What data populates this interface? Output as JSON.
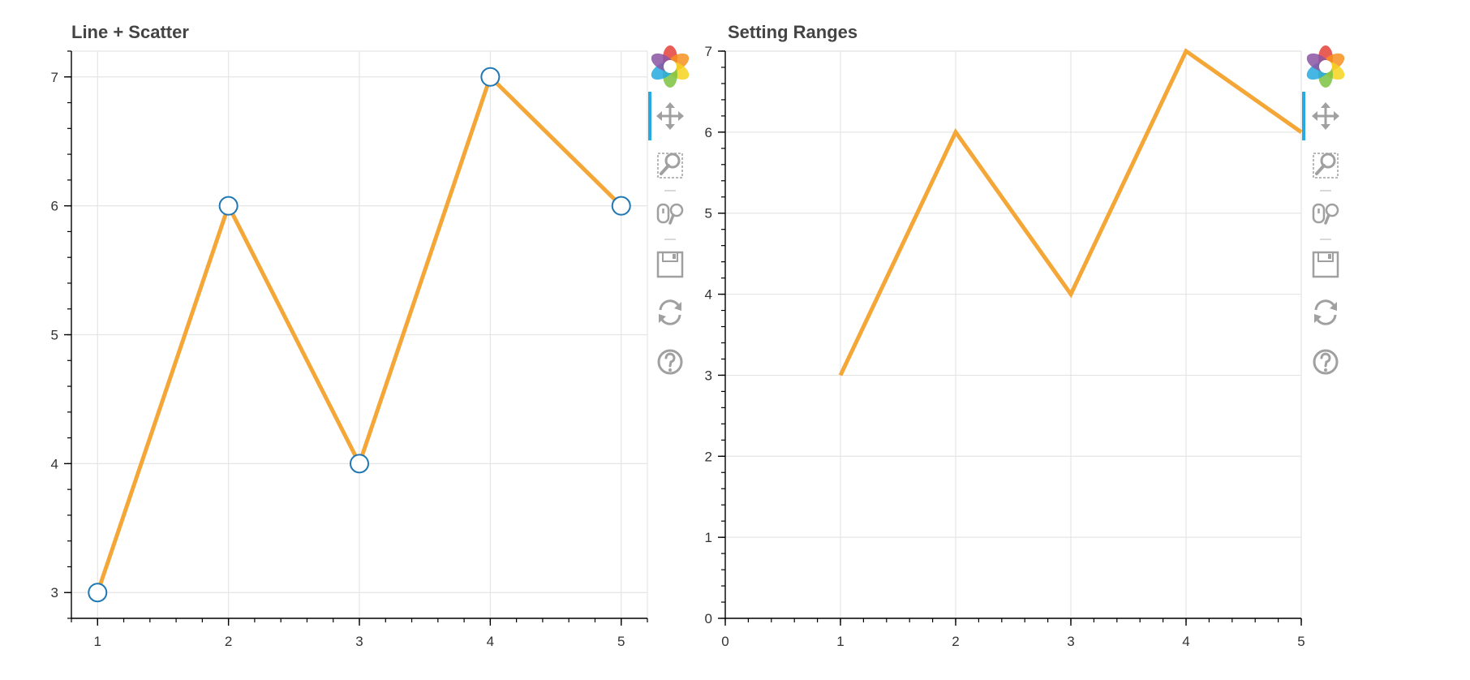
{
  "colors": {
    "line": "#f4a637",
    "marker_stroke": "#1f77b4",
    "grid": "#e5e5e5",
    "axis": "#000000",
    "tool_icon": "#a0a0a0",
    "active_tool": "#26aae1"
  },
  "toolbar": {
    "tools": [
      "bokeh-logo-icon",
      "pan-icon",
      "box-zoom-icon",
      "wheel-zoom-icon",
      "save-icon",
      "reset-icon",
      "help-icon"
    ]
  },
  "chart_data": [
    {
      "type": "line",
      "title": "Line + Scatter",
      "x": [
        1,
        2,
        3,
        4,
        5
      ],
      "series": [
        {
          "values": [
            3,
            6,
            4,
            7,
            6
          ],
          "style": "line",
          "color": "#f4a637"
        },
        {
          "values": [
            3,
            6,
            4,
            7,
            6
          ],
          "style": "scatter",
          "marker": "circle",
          "fill": "#ffffff",
          "color": "#1f77b4"
        }
      ],
      "xlim": [
        0.8,
        5.2
      ],
      "ylim": [
        2.8,
        7.2
      ],
      "xticks": [
        1,
        2,
        3,
        4,
        5
      ],
      "yticks": [
        3,
        4,
        5,
        6,
        7
      ],
      "xtick_labels": [
        "1",
        "2",
        "3",
        "4",
        "5"
      ],
      "ytick_labels": [
        "3",
        "4",
        "5",
        "6",
        "7"
      ],
      "grid": true,
      "legend": "none"
    },
    {
      "type": "line",
      "title": "Setting Ranges",
      "x": [
        1,
        2,
        3,
        4,
        5
      ],
      "series": [
        {
          "values": [
            3,
            6,
            4,
            7,
            6
          ],
          "style": "line",
          "color": "#f4a637"
        }
      ],
      "xlim": [
        0,
        5
      ],
      "ylim": [
        0,
        7
      ],
      "xticks": [
        0,
        1,
        2,
        3,
        4,
        5
      ],
      "yticks": [
        0,
        1,
        2,
        3,
        4,
        5,
        6,
        7
      ],
      "xtick_labels": [
        "0",
        "1",
        "2",
        "3",
        "4",
        "5"
      ],
      "ytick_labels": [
        "0",
        "1",
        "2",
        "3",
        "4",
        "5",
        "6",
        "7"
      ],
      "grid": true,
      "legend": "none"
    }
  ]
}
